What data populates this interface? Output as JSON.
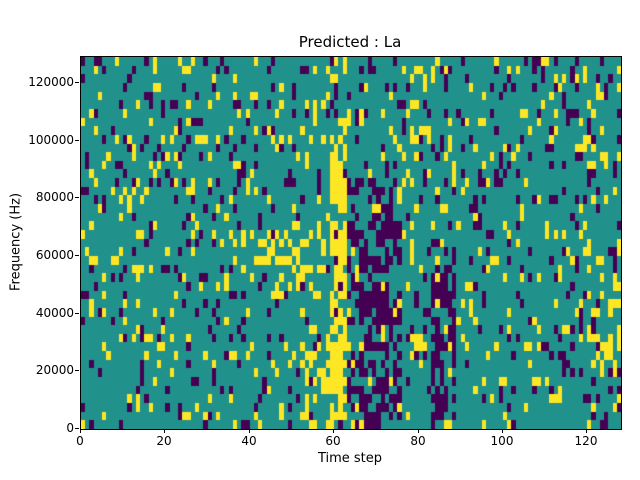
{
  "chart_data": {
    "type": "heatmap",
    "title": "Predicted : La",
    "xlabel": "Time step",
    "ylabel": "Frequency (Hz)",
    "x_range": [
      0,
      128
    ],
    "y_range": [
      0,
      129000
    ],
    "x_ticks": [
      {
        "value": 0,
        "label": "0"
      },
      {
        "value": 20,
        "label": "20"
      },
      {
        "value": 40,
        "label": "40"
      },
      {
        "value": 60,
        "label": "60"
      },
      {
        "value": 80,
        "label": "80"
      },
      {
        "value": 100,
        "label": "100"
      },
      {
        "value": 120,
        "label": "120"
      }
    ],
    "y_ticks": [
      {
        "value": 0,
        "label": "0"
      },
      {
        "value": 20000,
        "label": "20000"
      },
      {
        "value": 40000,
        "label": "40000"
      },
      {
        "value": 60000,
        "label": "60000"
      },
      {
        "value": 80000,
        "label": "80000"
      },
      {
        "value": 100000,
        "label": "100000"
      },
      {
        "value": 120000,
        "label": "120000"
      }
    ],
    "grid": {
      "cols": 128,
      "rows": 43
    },
    "colors": {
      "background": "#21918c",
      "yellow": "#fde725",
      "purple": "#440154",
      "axis": "#000000",
      "figure_background": "#ffffff"
    },
    "value_color_map": {
      "0": "background",
      "1": "yellow",
      "2": "purple"
    },
    "noise": {
      "seed": 7,
      "p_yellow": 0.09,
      "p_purple": 0.08
    },
    "features": [
      {
        "x": [
          59,
          63
        ],
        "y": [
          2000,
          108000
        ],
        "value": 1,
        "p": 0.7
      },
      {
        "x": [
          63,
          76
        ],
        "y": [
          0,
          86000
        ],
        "value": 2,
        "p": 0.4
      },
      {
        "x": [
          66,
          73
        ],
        "y": [
          0,
          60000
        ],
        "value": 2,
        "p": 0.35
      },
      {
        "x": [
          83,
          89
        ],
        "y": [
          3000,
          66000
        ],
        "value": 2,
        "p": 0.45
      },
      {
        "x": [
          45,
          57
        ],
        "y": [
          45000,
          73000
        ],
        "value": 1,
        "p": 0.3
      },
      {
        "x": [
          52,
          60
        ],
        "y": [
          0,
          30000
        ],
        "value": 1,
        "p": 0.25
      },
      {
        "x": [
          40,
          48
        ],
        "y": [
          52000,
          70000
        ],
        "value": 1,
        "p": 0.2
      },
      {
        "x": [
          93,
          101
        ],
        "y": [
          76000,
          90000
        ],
        "value": 2,
        "p": 0.25
      },
      {
        "x": [
          120,
          128
        ],
        "y": [
          15000,
          60000
        ],
        "value": 1,
        "p": 0.15
      },
      {
        "x": [
          78,
          83
        ],
        "y": [
          98000,
          126000
        ],
        "value": 1,
        "p": 0.18
      },
      {
        "x": [
          0,
          128
        ],
        "y": [
          108000,
          129000
        ],
        "value": 2,
        "p": 0.05
      }
    ],
    "legend": null,
    "grid_lines": false
  }
}
